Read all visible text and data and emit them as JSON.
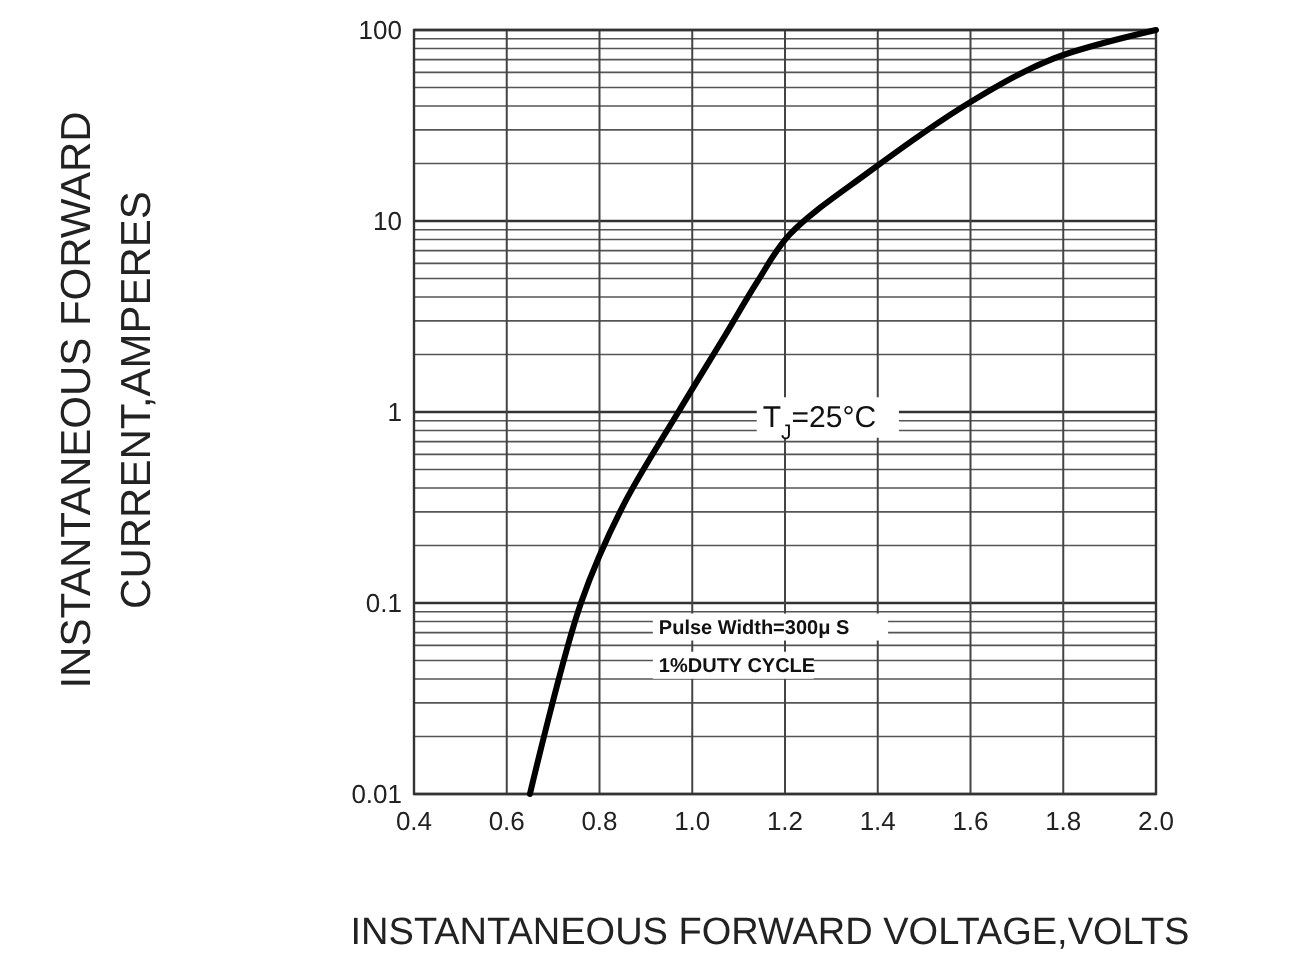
{
  "chart_data": {
    "type": "line",
    "xlabel": "INSTANTANEOUS FORWARD VOLTAGE,VOLTS",
    "ylabel": "INSTANTANEOUS FORWARD\nCURRENT,AMPERES",
    "x": [
      0.65,
      0.76,
      0.85,
      0.97,
      1.07,
      1.14,
      1.21,
      1.38,
      1.6,
      1.78,
      2.0
    ],
    "series": [
      {
        "color": "#000000",
        "values": [
          0.01,
          0.1,
          0.32,
          1,
          2.5,
          4.8,
          8.5,
          18,
          42,
          71,
          100
        ]
      }
    ],
    "log": "y",
    "grid": true,
    "marker": "none",
    "line_style": "solid",
    "xlim": [
      0.4,
      2.0
    ],
    "xticks": [
      0.4,
      0.6,
      0.8,
      {
        "value": 1,
        "label": "1.0"
      },
      1.2,
      1.4,
      1.6,
      1.8,
      {
        "value": 2,
        "label": "2.0"
      }
    ],
    "ylim": [
      0.01,
      100
    ],
    "yticks": [
      0.01,
      0.1,
      1,
      10,
      100
    ],
    "annotations": [
      "T$_{J}$=25°C",
      "Pulse Width=300μ S",
      "1%DUTY CYCLE"
    ]
  }
}
